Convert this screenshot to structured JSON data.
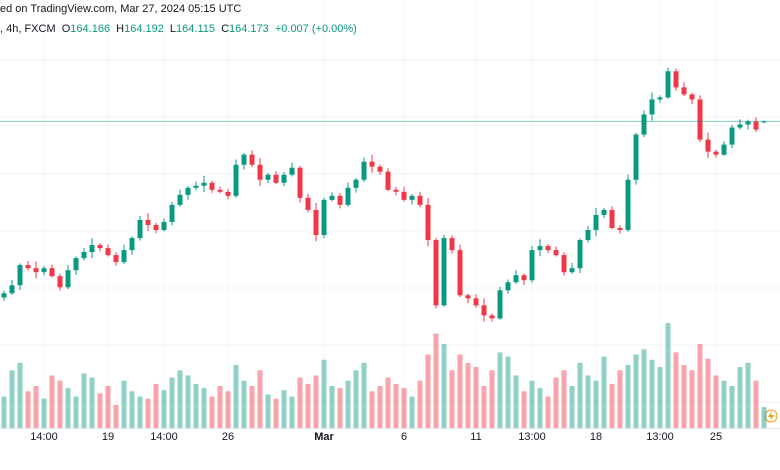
{
  "header": {
    "publisher": "ed on TradingView.com, Mar 27, 2024 05:15 UTC",
    "symbol": ", 4h, FXCM",
    "ohlc": [
      {
        "label": "O",
        "value": "164.166"
      },
      {
        "label": "H",
        "value": "164.192"
      },
      {
        "label": "L",
        "value": "164.115"
      },
      {
        "label": "C",
        "value": "164.173"
      }
    ],
    "change": "+0.007 (+0.00%)"
  },
  "chart_data": {
    "type": "candlestick",
    "categories": [
      null,
      null,
      null,
      null,
      null,
      "14:00",
      null,
      null,
      null,
      null,
      null,
      null,
      null,
      "19",
      null,
      null,
      null,
      null,
      null,
      null,
      "14:00",
      null,
      null,
      null,
      null,
      null,
      null,
      null,
      "26",
      null,
      null,
      null,
      null,
      null,
      null,
      null,
      null,
      null,
      null,
      null,
      "Mar",
      null,
      null,
      null,
      null,
      null,
      null,
      null,
      null,
      null,
      "6",
      null,
      null,
      null,
      null,
      null,
      null,
      null,
      null,
      "11",
      null,
      null,
      null,
      null,
      null,
      null,
      "13:00",
      null,
      null,
      null,
      null,
      null,
      null,
      null,
      "18",
      null,
      null,
      null,
      null,
      null,
      null,
      null,
      "13:00",
      null,
      null,
      null,
      null,
      null,
      null,
      "25",
      null,
      null,
      null,
      null,
      null,
      null
    ],
    "open": [
      159.05,
      159.174,
      159.408,
      159.992,
      159.904,
      159.788,
      159.904,
      159.671,
      159.35,
      159.846,
      160.196,
      160.372,
      160.576,
      160.488,
      160.284,
      160.08,
      160.43,
      160.78,
      161.306,
      161.16,
      161.014,
      161.248,
      161.744,
      162.036,
      162.24,
      162.299,
      162.386,
      162.182,
      162.124,
      162.007,
      162.912,
      163.204,
      162.912,
      162.474,
      162.62,
      162.386,
      162.62,
      162.824,
      161.948,
      161.598,
      160.868,
      161.89,
      162.007,
      161.744,
      162.24,
      162.474,
      163.0,
      162.854,
      162.708,
      162.182,
      162.124,
      161.89,
      162.007,
      161.744,
      160.722,
      158.824,
      160.78,
      160.43,
      159.116,
      159.028,
      158.824,
      158.532,
      158.444,
      159.262,
      159.496,
      159.7,
      159.554,
      160.43,
      160.547,
      160.43,
      160.284,
      159.788,
      159.904,
      160.722,
      161.014,
      161.452,
      161.598,
      161.072,
      161.014,
      162.474,
      163.788,
      164.372,
      164.81,
      164.868,
      165.628,
      165.16,
      164.956,
      164.81,
      163.642,
      163.292,
      163.204,
      163.496,
      163.992,
      164.08,
      164.17,
      164.166
    ],
    "high": [
      159.254,
      159.558,
      160.042,
      160.112,
      160.104,
      159.964,
      160.004,
      159.751,
      159.996,
      160.246,
      160.492,
      160.776,
      160.636,
      160.588,
      160.364,
      160.58,
      160.83,
      161.426,
      161.506,
      161.22,
      161.348,
      161.824,
      162.186,
      162.29,
      162.419,
      162.586,
      162.446,
      162.282,
      162.204,
      163.062,
      163.254,
      163.324,
      163.112,
      162.68,
      162.72,
      162.7,
      162.974,
      162.874,
      162.068,
      161.798,
      161.95,
      162.107,
      162.087,
      162.39,
      162.524,
      163.12,
      163.2,
      162.914,
      162.808,
      162.262,
      162.274,
      162.057,
      162.127,
      161.944,
      160.782,
      160.88,
      160.86,
      160.58,
      159.166,
      159.148,
      159.024,
      158.592,
      159.362,
      159.576,
      159.85,
      159.75,
      160.55,
      160.747,
      160.607,
      160.53,
      160.364,
      160.054,
      160.772,
      161.134,
      161.652,
      161.658,
      161.698,
      161.152,
      162.624,
      163.838,
      164.492,
      165.01,
      164.928,
      165.728,
      165.708,
      165.31,
      165.006,
      164.93,
      163.842,
      163.352,
      163.596,
      164.072,
      164.23,
      164.22,
      164.29,
      164.192
    ],
    "low": [
      158.95,
      159.124,
      159.268,
      159.834,
      159.608,
      159.698,
      159.631,
      159.25,
      159.3,
      159.706,
      160.126,
      160.192,
      160.398,
      160.244,
      159.98,
      160.03,
      160.29,
      160.71,
      160.98,
      160.924,
      160.974,
      161.148,
      161.694,
      161.896,
      162.17,
      162.119,
      162.092,
      162.084,
      161.907,
      161.957,
      162.772,
      162.842,
      162.294,
      162.384,
      162.346,
      162.286,
      162.57,
      161.808,
      161.528,
      160.688,
      160.778,
      161.85,
      161.644,
      161.694,
      162.1,
      162.404,
      162.674,
      162.618,
      162.142,
      162.024,
      161.84,
      161.75,
      161.674,
      160.542,
      158.734,
      158.784,
      160.33,
      159.066,
      158.888,
      158.754,
      158.352,
      158.354,
      158.404,
      159.162,
      159.446,
      159.414,
      159.484,
      160.25,
      160.34,
      160.244,
      159.688,
      159.738,
      159.764,
      160.652,
      160.834,
      161.362,
      161.032,
      160.914,
      160.964,
      162.334,
      163.718,
      164.192,
      164.72,
      164.828,
      165.06,
      164.906,
      164.67,
      163.572,
      163.112,
      163.114,
      163.164,
      163.396,
      163.942,
      163.94,
      163.864,
      164.115
    ],
    "close": [
      159.174,
      159.408,
      159.992,
      159.904,
      159.788,
      159.904,
      159.671,
      159.35,
      159.846,
      160.196,
      160.372,
      160.576,
      160.488,
      160.284,
      160.08,
      160.43,
      160.78,
      161.306,
      161.16,
      161.014,
      161.248,
      161.744,
      162.036,
      162.24,
      162.299,
      162.386,
      162.182,
      162.124,
      162.007,
      162.912,
      163.204,
      162.912,
      162.474,
      162.62,
      162.386,
      162.62,
      162.824,
      161.948,
      161.598,
      160.868,
      161.89,
      162.007,
      161.744,
      162.24,
      162.474,
      163.0,
      162.854,
      162.708,
      162.182,
      162.124,
      161.89,
      162.007,
      161.744,
      160.722,
      158.824,
      160.78,
      160.43,
      159.116,
      159.028,
      158.824,
      158.532,
      158.444,
      159.262,
      159.496,
      159.7,
      159.554,
      160.43,
      160.547,
      160.43,
      160.284,
      159.788,
      159.904,
      160.722,
      161.014,
      161.452,
      161.598,
      161.072,
      161.014,
      162.474,
      163.788,
      164.372,
      164.81,
      164.868,
      165.628,
      165.16,
      164.956,
      164.81,
      163.642,
      163.292,
      163.204,
      163.496,
      163.992,
      164.08,
      164.17,
      163.934,
      164.173
    ],
    "volume": [
      30,
      55,
      62,
      35,
      40,
      28,
      50,
      45,
      38,
      30,
      52,
      48,
      33,
      40,
      22,
      45,
      35,
      30,
      28,
      42,
      36,
      48,
      55,
      50,
      42,
      38,
      30,
      40,
      35,
      60,
      45,
      40,
      55,
      32,
      28,
      36,
      30,
      48,
      42,
      50,
      65,
      40,
      38,
      45,
      55,
      62,
      35,
      40,
      48,
      42,
      38,
      30,
      45,
      70,
      90,
      80,
      55,
      70,
      62,
      58,
      40,
      55,
      72,
      68,
      50,
      35,
      45,
      38,
      30,
      48,
      55,
      40,
      62,
      50,
      45,
      68,
      42,
      55,
      60,
      70,
      75,
      65,
      58,
      100,
      72,
      60,
      55,
      80,
      66,
      50,
      45,
      40,
      58,
      62,
      45,
      20
    ],
    "ylim": [
      155.2,
      167.7
    ],
    "volume_ylim": [
      0,
      100
    ],
    "up_color": "#089981",
    "down_color": "#f23645",
    "grid": true,
    "last_price_line": true
  }
}
